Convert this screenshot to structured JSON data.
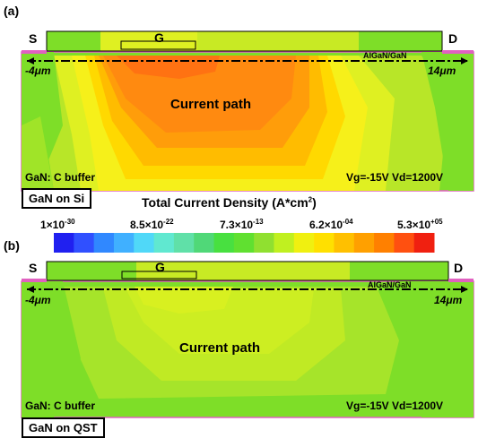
{
  "panel_a": {
    "letter": "(a)",
    "source": "S",
    "gate": "G",
    "drain": "D",
    "interface": "AlGaN/GaN",
    "x_left": "-4μm",
    "x_right": "14μm",
    "region": "Current path",
    "buffer": "GaN: C buffer",
    "bias": "Vg=-15V Vd=1200V",
    "substrate": "GaN on Si"
  },
  "colorbar": {
    "title": "Total Current Density (A*cm",
    "title_sup": "2",
    "title_end": ")",
    "ticks": [
      {
        "mant": "1×10",
        "exp": "-30"
      },
      {
        "mant": "8.5×10",
        "exp": "-22"
      },
      {
        "mant": "7.3×10",
        "exp": "-13"
      },
      {
        "mant": "6.2×10",
        "exp": "-04"
      },
      {
        "mant": "5.3×10",
        "exp": "+05"
      }
    ],
    "colors": [
      "#2020f0",
      "#3050ff",
      "#3088ff",
      "#40b0ff",
      "#50d8f8",
      "#60e8d0",
      "#60e0a8",
      "#50d878",
      "#48e040",
      "#60e030",
      "#90e030",
      "#c0f020",
      "#f0f010",
      "#ffe000",
      "#ffc000",
      "#ffa000",
      "#ff8000",
      "#ff5010",
      "#f02010"
    ]
  },
  "panel_b": {
    "letter": "(b)",
    "source": "S",
    "gate": "G",
    "drain": "D",
    "interface": "AlGaN/GaN",
    "x_left": "-4μm",
    "x_right": "14μm",
    "region": "Current path",
    "buffer": "GaN: C buffer",
    "bias": "Vg=-15V Vd=1200V",
    "substrate": "GaN on QST"
  }
}
